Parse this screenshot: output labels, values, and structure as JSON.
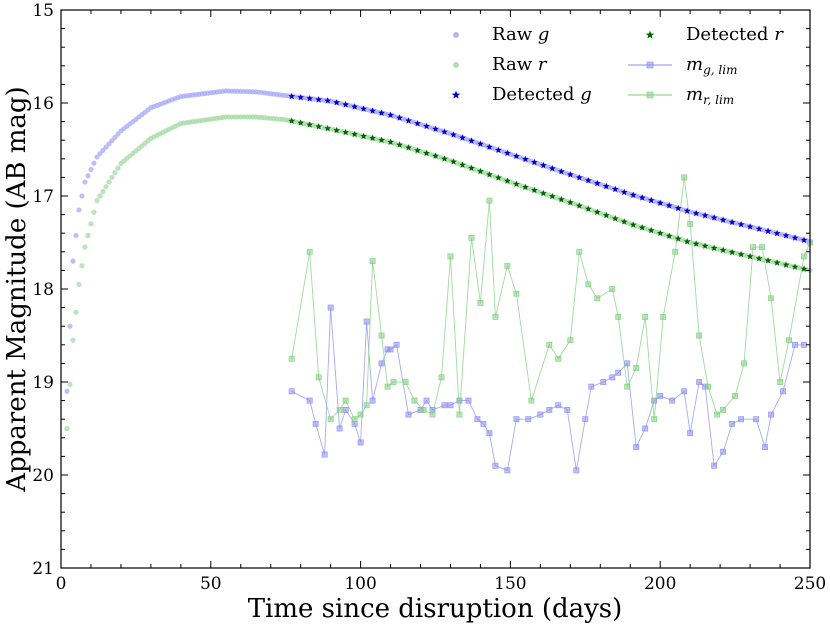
{
  "chart_data": {
    "type": "scatter",
    "xlabel": "Time since disruption (days)",
    "ylabel": "Apparent Magnitude (AB mag)",
    "xlim": [
      0,
      250
    ],
    "ylim": [
      15,
      21
    ],
    "y_inverted": true,
    "x_ticks": [
      0,
      50,
      100,
      150,
      200,
      250
    ],
    "y_ticks": [
      15,
      16,
      17,
      18,
      19,
      20,
      21
    ],
    "grid": false,
    "legend_position": "top-right",
    "model_g": {
      "description": "smooth light curve, g band",
      "points": [
        [
          2,
          19.1
        ],
        [
          4,
          17.7
        ],
        [
          6,
          17.15
        ],
        [
          8,
          16.85
        ],
        [
          12,
          16.58
        ],
        [
          20,
          16.3
        ],
        [
          30,
          16.05
        ],
        [
          40,
          15.93
        ],
        [
          55,
          15.87
        ],
        [
          65,
          15.88
        ],
        [
          75,
          15.92
        ],
        [
          90,
          15.98
        ],
        [
          110,
          16.13
        ],
        [
          130,
          16.33
        ],
        [
          150,
          16.55
        ],
        [
          170,
          16.77
        ],
        [
          190,
          16.98
        ],
        [
          210,
          17.17
        ],
        [
          230,
          17.33
        ],
        [
          250,
          17.49
        ]
      ]
    },
    "model_r": {
      "description": "smooth light curve, r band",
      "points": [
        [
          2,
          19.5
        ],
        [
          4,
          18.55
        ],
        [
          6,
          17.95
        ],
        [
          8,
          17.55
        ],
        [
          12,
          17.05
        ],
        [
          20,
          16.65
        ],
        [
          30,
          16.38
        ],
        [
          40,
          16.22
        ],
        [
          55,
          16.15
        ],
        [
          65,
          16.15
        ],
        [
          75,
          16.18
        ],
        [
          90,
          16.28
        ],
        [
          110,
          16.42
        ],
        [
          130,
          16.62
        ],
        [
          150,
          16.85
        ],
        [
          170,
          17.07
        ],
        [
          190,
          17.3
        ],
        [
          210,
          17.5
        ],
        [
          230,
          17.65
        ],
        [
          250,
          17.8
        ]
      ]
    },
    "detected_start_day": 77,
    "lim_g": {
      "x": [
        77,
        83,
        85,
        88,
        90,
        93,
        95,
        98,
        100,
        102,
        104,
        107,
        109,
        110,
        112,
        116,
        120,
        122,
        124,
        128,
        130,
        133,
        136,
        139,
        141,
        143,
        145,
        149,
        152,
        156,
        160,
        163,
        166,
        169,
        172,
        175,
        177,
        181,
        184,
        186,
        189,
        192,
        195,
        198,
        200,
        204,
        208,
        210,
        213,
        215,
        218,
        221,
        224,
        227,
        232,
        235,
        237,
        241,
        245,
        248
      ],
      "y": [
        19.1,
        19.2,
        19.45,
        19.78,
        18.2,
        19.5,
        19.3,
        19.45,
        19.65,
        18.35,
        19.2,
        18.8,
        18.65,
        18.65,
        18.6,
        19.35,
        19.3,
        19.2,
        19.3,
        19.25,
        19.25,
        19.2,
        19.2,
        19.4,
        19.45,
        19.55,
        19.9,
        19.95,
        19.4,
        19.4,
        19.35,
        19.3,
        19.25,
        19.3,
        19.95,
        19.4,
        19.05,
        19.0,
        18.95,
        18.9,
        18.8,
        19.7,
        19.5,
        19.2,
        19.15,
        19.2,
        19.1,
        19.55,
        19.0,
        19.05,
        19.9,
        19.75,
        19.45,
        19.4,
        19.4,
        19.7,
        19.35,
        19.1,
        18.6,
        18.6
      ]
    },
    "lim_r": {
      "x": [
        77,
        83,
        86,
        90,
        93,
        95,
        98,
        100,
        102,
        104,
        107,
        109,
        111,
        115,
        118,
        121,
        124,
        127,
        130,
        133,
        137,
        140,
        143,
        145,
        149,
        152,
        157,
        163,
        166,
        170,
        173,
        176,
        179,
        184,
        186,
        189,
        192,
        195,
        198,
        201,
        205,
        208,
        210,
        213,
        216,
        219,
        221,
        225,
        228,
        231,
        234,
        237,
        240,
        243,
        248,
        250
      ],
      "y": [
        18.75,
        17.6,
        18.95,
        19.4,
        19.3,
        19.2,
        19.4,
        19.35,
        19.25,
        17.7,
        18.5,
        19.05,
        19.0,
        19.0,
        19.2,
        19.3,
        19.35,
        18.95,
        17.65,
        19.35,
        17.45,
        18.15,
        17.05,
        18.3,
        17.75,
        18.05,
        19.2,
        18.6,
        18.75,
        18.55,
        17.6,
        17.95,
        18.1,
        18.0,
        18.3,
        19.05,
        18.85,
        18.3,
        19.4,
        18.3,
        17.6,
        16.8,
        17.3,
        18.5,
        19.05,
        19.35,
        19.3,
        19.15,
        18.8,
        17.55,
        17.55,
        18.1,
        19.0,
        18.55,
        17.65,
        17.5
      ]
    },
    "legend": [
      {
        "label": "Raw",
        "italic": "g"
      },
      {
        "label": "Raw",
        "italic": "r"
      },
      {
        "label": "Detected",
        "italic": "g"
      },
      {
        "label": "Detected",
        "italic": "r"
      },
      {
        "label": "m",
        "sub": "g, lim"
      },
      {
        "label": "m",
        "sub": "r, lim"
      }
    ],
    "colors": {
      "raw_g": "#a9a9f5",
      "raw_r": "#a6d9a6",
      "detected_g": "#0000cc",
      "detected_r": "#006400",
      "lim_g": "#8a8ef0",
      "lim_r": "#7fcf7f"
    }
  }
}
